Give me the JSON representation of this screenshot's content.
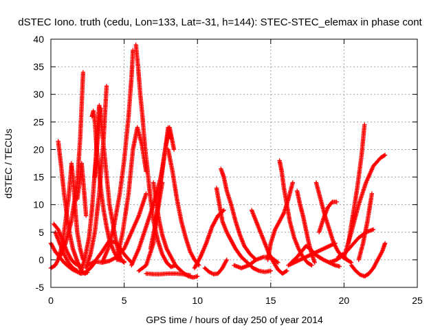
{
  "chart_data": {
    "type": "scatter",
    "title": "dSTEC Iono. truth (cedu, Lon=133, Lat=-31, h=144): STEC-STEC_elemax in phase cont",
    "xlabel": "GPS time / hours of day 250 of year 2014",
    "ylabel": "dSTEC  / TECUs",
    "xlim": [
      0,
      25
    ],
    "ylim": [
      -5,
      40
    ],
    "xticks": [
      0,
      5,
      10,
      15,
      20,
      25
    ],
    "yticks": [
      -5,
      0,
      5,
      10,
      15,
      20,
      25,
      30,
      35,
      40
    ],
    "grid": true,
    "marker": "+",
    "colors": {
      "series": "#ff0000",
      "axis": "#000000",
      "grid": "#a0a0a0"
    },
    "series": [
      {
        "x": [
          0.0,
          0.3,
          0.6,
          0.9,
          1.2,
          1.5,
          1.8,
          2.1,
          2.4,
          2.7,
          3.0
        ],
        "y": [
          3.0,
          1.5,
          0.5,
          -0.5,
          -1.2,
          -1.8,
          -2.2,
          -2.5,
          -2.2,
          -1.5,
          -0.5
        ]
      },
      {
        "x": [
          0.0,
          0.3,
          0.6,
          1.0,
          1.4,
          1.8,
          2.0,
          2.1,
          2.2
        ],
        "y": [
          -1.5,
          -1.0,
          0.5,
          3.0,
          7.0,
          14.0,
          22.0,
          28.0,
          34.0
        ]
      },
      {
        "x": [
          0.2,
          0.5,
          0.8,
          1.1,
          1.4,
          1.7,
          2.0
        ],
        "y": [
          6.5,
          5.5,
          3.5,
          1.5,
          0.0,
          -0.8,
          -1.0
        ]
      },
      {
        "x": [
          0.5,
          0.7,
          0.9,
          1.1,
          1.3,
          1.5,
          1.7,
          1.9,
          2.1,
          2.3,
          2.5
        ],
        "y": [
          21.5,
          17.0,
          12.0,
          8.0,
          4.5,
          2.0,
          0.5,
          -1.0,
          -2.0,
          -2.5,
          -2.3
        ]
      },
      {
        "x": [
          0.3,
          0.6,
          0.9,
          1.2,
          1.5,
          1.8
        ],
        "y": [
          5.0,
          3.0,
          1.0,
          -0.5,
          -1.5,
          -2.0
        ]
      },
      {
        "x": [
          1.4,
          1.5,
          1.6,
          1.7,
          1.8,
          2.0,
          2.2
        ],
        "y": [
          17.5,
          15.0,
          12.0,
          8.0,
          5.0,
          2.0,
          0.0
        ]
      },
      {
        "x": [
          0.5,
          0.8,
          1.0,
          1.2,
          1.4
        ],
        "y": [
          0.0,
          3.0,
          7.0,
          11.0,
          17.0
        ]
      },
      {
        "x": [
          1.8,
          1.95,
          2.1,
          2.25,
          2.4
        ],
        "y": [
          11.0,
          14.0,
          17.5,
          13.0,
          8.0
        ]
      },
      {
        "x": [
          2.0,
          2.3,
          2.6,
          2.8,
          3.0,
          3.2,
          3.4
        ],
        "y": [
          -2.5,
          0.0,
          4.0,
          9.0,
          16.0,
          22.0,
          27.5
        ]
      },
      {
        "x": [
          2.8,
          2.9,
          3.0,
          3.1,
          3.25,
          3.4,
          3.6,
          3.8,
          4.0,
          4.3,
          4.6,
          5.0
        ],
        "y": [
          26.0,
          27.0,
          25.0,
          21.0,
          17.0,
          13.0,
          9.0,
          6.0,
          3.5,
          1.5,
          0.0,
          -0.3
        ]
      },
      {
        "x": [
          3.0,
          3.1,
          3.2,
          3.3,
          3.4,
          3.55,
          3.7,
          3.85,
          4.0,
          4.2,
          4.4,
          4.6,
          4.8,
          5.0
        ],
        "y": [
          15.0,
          20.0,
          25.0,
          28.0,
          26.0,
          22.0,
          18.0,
          14.0,
          10.0,
          7.0,
          4.0,
          1.5,
          0.0,
          -0.5
        ]
      },
      {
        "x": [
          2.4,
          2.7,
          3.0,
          3.3,
          3.6,
          3.8
        ],
        "y": [
          -1.5,
          1.0,
          5.0,
          12.0,
          22.0,
          31.5
        ]
      },
      {
        "x": [
          3.5,
          3.9,
          4.3,
          4.7,
          5.0,
          5.3,
          5.5,
          5.6
        ],
        "y": [
          -0.5,
          2.0,
          6.0,
          12.0,
          18.0,
          26.0,
          33.0,
          38.0
        ]
      },
      {
        "x": [
          2.5,
          3.0,
          3.5,
          4.0,
          4.5,
          5.0,
          5.5
        ],
        "y": [
          -1.0,
          -0.3,
          1.5,
          3.5,
          3.0,
          1.0,
          -0.5
        ]
      },
      {
        "x": [
          3.0,
          3.5,
          4.0,
          4.5,
          5.0,
          5.5,
          6.0,
          6.5
        ],
        "y": [
          -0.3,
          -0.5,
          -0.2,
          0.5,
          2.0,
          5.0,
          8.0,
          12.0
        ]
      },
      {
        "x": [
          4.5,
          4.9,
          5.3,
          5.6,
          5.9,
          6.2,
          6.5
        ],
        "y": [
          0.0,
          5.0,
          12.0,
          20.0,
          24.0,
          21.0,
          16.0
        ]
      },
      {
        "x": [
          5.8,
          5.95,
          6.1,
          6.25,
          6.4,
          6.6,
          6.8,
          7.0,
          7.3,
          7.6,
          7.9,
          8.2,
          8.5
        ],
        "y": [
          39.0,
          35.0,
          30.0,
          26.0,
          21.0,
          16.0,
          11.0,
          7.0,
          3.5,
          1.0,
          -0.5,
          -1.3,
          -1.0
        ]
      },
      {
        "x": [
          5.5,
          6.0,
          6.5,
          7.0,
          7.5,
          7.8,
          8.1,
          8.4
        ],
        "y": [
          -1.0,
          2.0,
          6.0,
          10.0,
          15.0,
          20.0,
          24.0,
          20.0
        ]
      },
      {
        "x": [
          6.0,
          6.5,
          7.0,
          7.3,
          7.6
        ],
        "y": [
          -2.0,
          -1.0,
          3.0,
          9.0,
          14.0
        ]
      },
      {
        "x": [
          7.0,
          7.2,
          7.4,
          7.6,
          7.9,
          8.2,
          8.5,
          8.8,
          9.1,
          9.4,
          9.7,
          10.0
        ],
        "y": [
          14.0,
          10.0,
          7.0,
          4.5,
          2.0,
          0.5,
          -1.0,
          -1.8,
          -2.5,
          -3.0,
          -3.2,
          -3.0
        ]
      },
      {
        "x": [
          6.8,
          7.1,
          7.4,
          7.7,
          8.0,
          8.2
        ],
        "y": [
          2.0,
          6.0,
          12.0,
          18.0,
          24.0,
          22.0
        ]
      },
      {
        "x": [
          8.0,
          8.3,
          8.6,
          8.9,
          9.2,
          9.5,
          9.8,
          10.1
        ],
        "y": [
          20.0,
          16.0,
          11.0,
          7.0,
          4.0,
          1.5,
          0.0,
          -1.0
        ]
      },
      {
        "x": [
          6.5,
          7.0,
          7.5,
          8.0,
          8.5,
          9.0,
          9.5
        ],
        "y": [
          -2.5,
          -2.6,
          -2.6,
          -2.5,
          -2.5,
          -2.6,
          -2.8
        ]
      },
      {
        "x": [
          9.8,
          10.2,
          10.6,
          11.0,
          11.4,
          11.8
        ],
        "y": [
          -1.5,
          0.5,
          3.0,
          6.0,
          8.0,
          9.0
        ]
      },
      {
        "x": [
          10.5,
          10.8,
          11.1,
          11.4,
          11.7,
          12.0
        ],
        "y": [
          -1.5,
          -2.2,
          -2.6,
          -2.5,
          -1.5,
          0.0
        ]
      },
      {
        "x": [
          11.3,
          11.5,
          11.7,
          12.0,
          12.3,
          12.6,
          13.0,
          13.4,
          13.8,
          14.2,
          14.6,
          15.0
        ],
        "y": [
          13.0,
          10.0,
          7.0,
          5.0,
          3.5,
          2.0,
          0.5,
          -0.5,
          -1.5,
          -2.0,
          -2.2,
          -2.0
        ]
      },
      {
        "x": [
          11.6,
          11.8,
          12.0,
          12.3,
          12.6,
          12.9,
          13.2,
          13.6,
          14.0
        ],
        "y": [
          16.5,
          15.0,
          12.5,
          10.0,
          7.0,
          4.5,
          2.5,
          1.0,
          0.0
        ]
      },
      {
        "x": [
          12.5,
          13.0,
          13.5,
          14.0,
          14.5,
          15.0,
          15.5
        ],
        "y": [
          -1.0,
          -1.5,
          -1.0,
          0.0,
          0.5,
          0.5,
          -0.5
        ]
      },
      {
        "x": [
          13.7,
          14.0,
          14.3,
          14.6,
          14.9,
          15.2,
          15.5,
          15.8,
          16.1
        ],
        "y": [
          9.0,
          7.0,
          5.0,
          3.0,
          1.0,
          -0.5,
          -1.8,
          -2.5,
          -2.0
        ]
      },
      {
        "x": [
          14.8,
          15.0,
          15.3,
          15.6,
          15.9,
          16.2,
          16.5
        ],
        "y": [
          0.0,
          3.0,
          5.5,
          7.0,
          8.5,
          11.0,
          14.0
        ]
      },
      {
        "x": [
          15.6,
          15.75,
          15.9,
          16.1,
          16.3,
          16.6,
          16.9,
          17.2,
          17.5,
          17.8
        ],
        "y": [
          18.0,
          16.0,
          13.0,
          10.0,
          7.0,
          4.0,
          2.0,
          0.5,
          -0.5,
          -1.0
        ]
      },
      {
        "x": [
          16.2,
          16.6,
          17.0,
          17.4,
          17.8,
          18.2,
          18.6,
          19.0,
          19.4
        ],
        "y": [
          -1.0,
          -0.5,
          0.0,
          0.5,
          1.0,
          1.5,
          2.0,
          2.5,
          3.0
        ]
      },
      {
        "x": [
          16.4,
          16.8,
          17.1,
          17.4,
          17.7,
          18.0,
          18.3,
          18.6,
          19.0,
          19.4,
          19.7
        ],
        "y": [
          -0.5,
          0.5,
          1.5,
          2.5,
          2.0,
          1.0,
          0.5,
          0.0,
          -0.5,
          -1.0,
          -1.2
        ]
      },
      {
        "x": [
          16.8,
          17.0,
          17.2,
          17.4,
          17.6,
          17.8,
          18.0
        ],
        "y": [
          12.5,
          10.0,
          8.0,
          5.5,
          3.0,
          1.0,
          -0.5
        ]
      },
      {
        "x": [
          18.1,
          18.4,
          18.7,
          19.0,
          19.3,
          19.6,
          19.9,
          20.2
        ],
        "y": [
          14.0,
          11.0,
          8.0,
          5.5,
          3.0,
          1.5,
          0.5,
          0.0
        ]
      },
      {
        "x": [
          18.3,
          18.6,
          18.9,
          19.2,
          19.5
        ],
        "y": [
          5.0,
          7.5,
          9.5,
          10.5,
          10.5
        ]
      },
      {
        "x": [
          19.0,
          19.5,
          20.0,
          20.5,
          21.0,
          21.5,
          22.0
        ],
        "y": [
          -0.5,
          0.0,
          1.0,
          2.5,
          4.0,
          5.0,
          5.5
        ]
      },
      {
        "x": [
          20.0,
          20.5,
          21.0,
          21.5,
          22.0,
          22.5,
          22.8
        ],
        "y": [
          0.5,
          5.0,
          10.0,
          14.0,
          17.0,
          18.5,
          19.0
        ]
      },
      {
        "x": [
          20.3,
          20.6,
          20.9,
          21.2,
          21.4
        ],
        "y": [
          3.0,
          8.0,
          13.0,
          19.0,
          24.5
        ]
      },
      {
        "x": [
          20.5,
          20.8,
          21.1,
          21.4,
          21.7,
          22.0,
          22.3,
          22.6,
          22.8
        ],
        "y": [
          -1.0,
          -2.0,
          -2.7,
          -3.0,
          -2.5,
          -1.5,
          0.0,
          1.5,
          3.0
        ]
      },
      {
        "x": [
          19.6,
          19.9,
          20.2,
          20.5
        ],
        "y": [
          0.5,
          1.0,
          0.0,
          -0.5
        ]
      },
      {
        "x": [
          21.0,
          21.3,
          21.6,
          21.9
        ],
        "y": [
          0.0,
          3.0,
          7.0,
          12.0
        ]
      }
    ]
  }
}
